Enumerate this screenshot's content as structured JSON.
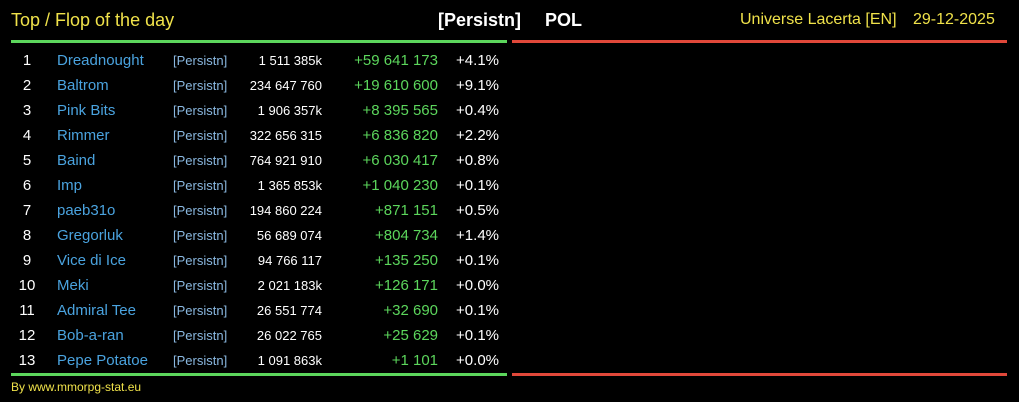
{
  "header": {
    "title": "Top / Flop of the day",
    "alliance": "[Persistn]",
    "country": "POL",
    "universe": "Universe Lacerta [EN]",
    "date": "29-12-2025"
  },
  "table": {
    "rows": [
      [
        "1",
        "Dreadnought",
        "[Persistn]",
        "1 511 385k",
        "+59 641 173",
        "+4.1%"
      ],
      [
        "2",
        "Baltrom",
        "[Persistn]",
        "234 647 760",
        "+19 610 600",
        "+9.1%"
      ],
      [
        "3",
        "Pink Bits",
        "[Persistn]",
        "1 906 357k",
        "+8 395 565",
        "+0.4%"
      ],
      [
        "4",
        "Rimmer",
        "[Persistn]",
        "322 656 315",
        "+6 836 820",
        "+2.2%"
      ],
      [
        "5",
        "Baind",
        "[Persistn]",
        "764 921 910",
        "+6 030 417",
        "+0.8%"
      ],
      [
        "6",
        "Imp",
        "[Persistn]",
        "1 365 853k",
        "+1 040 230",
        "+0.1%"
      ],
      [
        "7",
        "paeb31o",
        "[Persistn]",
        "194 860 224",
        "+871 151",
        "+0.5%"
      ],
      [
        "8",
        "Gregorluk",
        "[Persistn]",
        "56 689 074",
        "+804 734",
        "+1.4%"
      ],
      [
        "9",
        "Vice di Ice",
        "[Persistn]",
        "94 766 117",
        "+135 250",
        "+0.1%"
      ],
      [
        "10",
        "Meki",
        "[Persistn]",
        "2 021 183k",
        "+126 171",
        "+0.0%"
      ],
      [
        "11",
        "Admiral Tee",
        "[Persistn]",
        "26 551 774",
        "+32 690",
        "+0.1%"
      ],
      [
        "12",
        "Bob-a-ran",
        "[Persistn]",
        "26 022 765",
        "+25 629",
        "+0.1%"
      ],
      [
        "13",
        "Pepe Potatoe",
        "[Persistn]",
        "1 091 863k",
        "+1 101",
        "+0.0%"
      ]
    ]
  },
  "footer": {
    "credit": "By www.mmorpg-stat.eu"
  }
}
